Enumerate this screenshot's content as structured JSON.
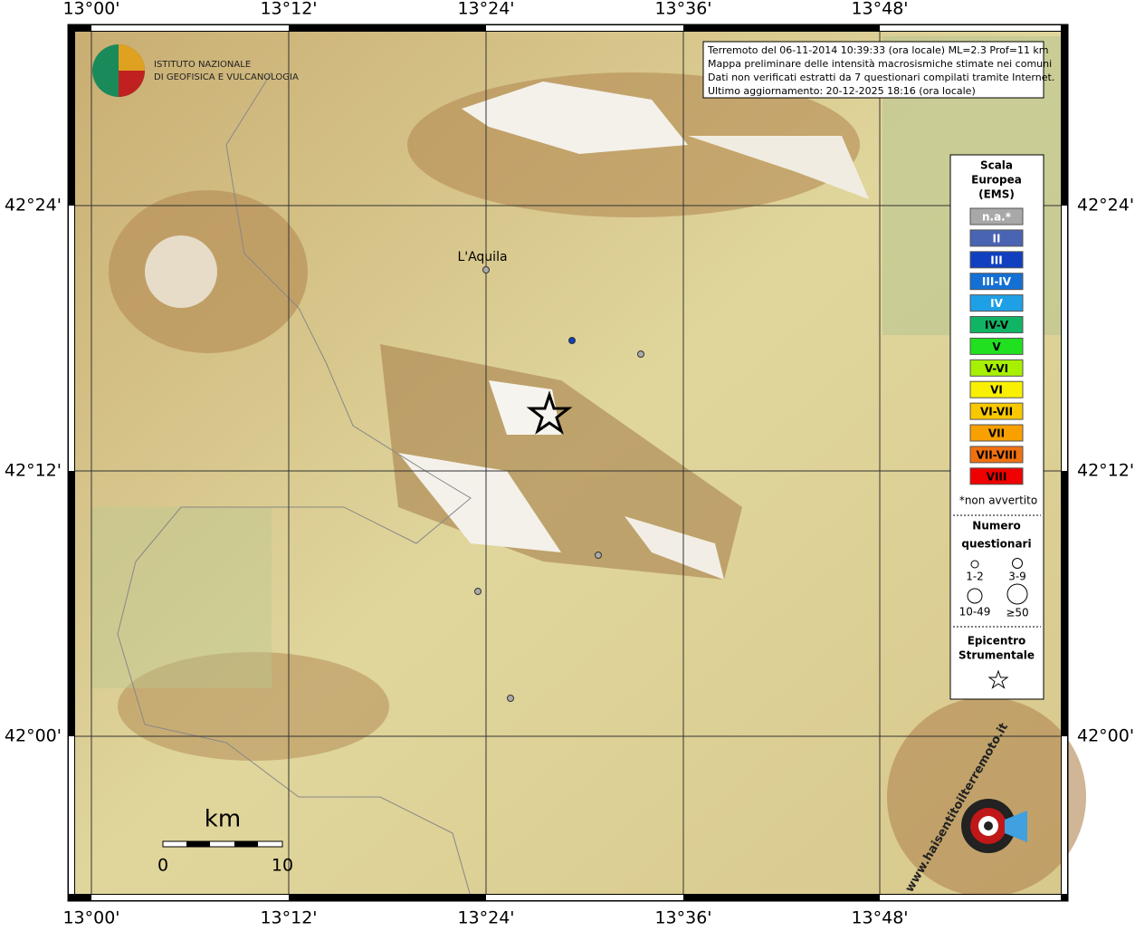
{
  "info": [
    "Terremoto del 06-11-2014 10:39:33 (ora locale) ML=2.3 Prof=11 km",
    "Mappa preliminare delle intensità macrosismiche stimate nei comuni",
    "Dati non verificati estratti da 7 questionari compilati tramite Internet.",
    "Ultimo aggiornamento: 20-12-2025 18:16 (ora locale)"
  ],
  "logo": [
    "ISTITUTO NAZIONALE",
    "DI GEOFISICA E VULCANOLOGIA"
  ],
  "lon_labels": [
    "13°00'",
    "13°12'",
    "13°24'",
    "13°36'",
    "13°48'"
  ],
  "lat_labels": [
    "42°24'",
    "42°12'",
    "42°00'"
  ],
  "city": "L'Aquila",
  "legend": {
    "title": [
      "Scala",
      "Europea",
      "(EMS)"
    ],
    "classes": [
      {
        "label": "n.a.*",
        "color": "#a8a8a8"
      },
      {
        "label": "II",
        "color": "#4a64b4"
      },
      {
        "label": "III",
        "color": "#1040c0"
      },
      {
        "label": "III-IV",
        "color": "#1470d4"
      },
      {
        "label": "IV",
        "color": "#1ea0e6"
      },
      {
        "label": "IV-V",
        "color": "#10b464"
      },
      {
        "label": "V",
        "color": "#20e020"
      },
      {
        "label": "V-VI",
        "color": "#a6f000"
      },
      {
        "label": "VI",
        "color": "#f8f000"
      },
      {
        "label": "VI-VII",
        "color": "#f8c800"
      },
      {
        "label": "VII",
        "color": "#f8a000"
      },
      {
        "label": "VII-VIII",
        "color": "#f07010"
      },
      {
        "label": "VIII",
        "color": "#f00000"
      }
    ],
    "note": "*non avvertito",
    "count_title": [
      "Numero",
      "questionari"
    ],
    "counts": [
      "1-2",
      "3-9",
      "10-49",
      "≥50"
    ],
    "epicenter_title": [
      "Epicentro",
      "Strumentale"
    ]
  },
  "scale": {
    "unit": "km",
    "start": 0,
    "end": 10
  },
  "brand": "www.haisentitoilterremoto.it"
}
